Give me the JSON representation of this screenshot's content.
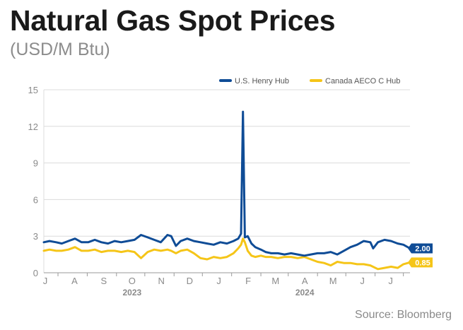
{
  "title": "Natural Gas Spot Prices",
  "subtitle": "(USD/M Btu)",
  "source": "Source: Bloomberg",
  "colors": {
    "henry": "#0f4c96",
    "aeco": "#f5c518",
    "grid": "#dcdcdc",
    "axis": "#9a9a9a"
  },
  "chart_data": {
    "type": "line",
    "y_ticks": [
      0,
      3,
      6,
      9,
      12,
      15
    ],
    "ylim": [
      0,
      15
    ],
    "xlim": [
      "2023-06-16",
      "2024-07-08"
    ],
    "month_ticks": [
      {
        "label": "J",
        "date": "2023-07-01"
      },
      {
        "label": "A",
        "date": "2023-08-01"
      },
      {
        "label": "S",
        "date": "2023-09-01"
      },
      {
        "label": "O",
        "date": "2023-10-01"
      },
      {
        "label": "N",
        "date": "2023-11-01"
      },
      {
        "label": "D",
        "date": "2023-12-01"
      },
      {
        "label": "J",
        "date": "2024-01-01"
      },
      {
        "label": "F",
        "date": "2024-02-01"
      },
      {
        "label": "M",
        "date": "2024-03-01"
      },
      {
        "label": "A",
        "date": "2024-04-01"
      },
      {
        "label": "M",
        "date": "2024-05-01"
      },
      {
        "label": "J",
        "date": "2024-06-01"
      },
      {
        "label": "J",
        "date": "2024-07-01"
      }
    ],
    "year_labels": [
      {
        "label": "2023",
        "date": "2023-10-01"
      },
      {
        "label": "2024",
        "date": "2024-04-01"
      }
    ],
    "legend": "top-right",
    "series": [
      {
        "name": "U.S. Henry Hub",
        "color": "#0f4c96",
        "end_label": "2.00",
        "points": [
          [
            "2023-06-16",
            2.5
          ],
          [
            "2023-06-22",
            2.6
          ],
          [
            "2023-06-29",
            2.5
          ],
          [
            "2023-07-05",
            2.4
          ],
          [
            "2023-07-12",
            2.6
          ],
          [
            "2023-07-19",
            2.8
          ],
          [
            "2023-07-26",
            2.5
          ],
          [
            "2023-08-02",
            2.5
          ],
          [
            "2023-08-09",
            2.7
          ],
          [
            "2023-08-16",
            2.5
          ],
          [
            "2023-08-23",
            2.4
          ],
          [
            "2023-08-30",
            2.6
          ],
          [
            "2023-09-06",
            2.5
          ],
          [
            "2023-09-13",
            2.6
          ],
          [
            "2023-09-20",
            2.7
          ],
          [
            "2023-09-27",
            3.1
          ],
          [
            "2023-10-04",
            2.9
          ],
          [
            "2023-10-11",
            2.7
          ],
          [
            "2023-10-18",
            2.5
          ],
          [
            "2023-10-25",
            3.1
          ],
          [
            "2023-10-29",
            3.0
          ],
          [
            "2023-11-03",
            2.2
          ],
          [
            "2023-11-08",
            2.6
          ],
          [
            "2023-11-15",
            2.8
          ],
          [
            "2023-11-22",
            2.6
          ],
          [
            "2023-11-29",
            2.5
          ],
          [
            "2023-12-06",
            2.4
          ],
          [
            "2023-12-13",
            2.3
          ],
          [
            "2023-12-20",
            2.5
          ],
          [
            "2023-12-27",
            2.4
          ],
          [
            "2024-01-03",
            2.6
          ],
          [
            "2024-01-08",
            2.8
          ],
          [
            "2024-01-11",
            3.2
          ],
          [
            "2024-01-13",
            13.2
          ],
          [
            "2024-01-15",
            2.9
          ],
          [
            "2024-01-18",
            3.0
          ],
          [
            "2024-01-22",
            2.4
          ],
          [
            "2024-01-26",
            2.1
          ],
          [
            "2024-02-01",
            1.9
          ],
          [
            "2024-02-06",
            1.7
          ],
          [
            "2024-02-12",
            1.6
          ],
          [
            "2024-02-19",
            1.6
          ],
          [
            "2024-02-26",
            1.5
          ],
          [
            "2024-03-04",
            1.6
          ],
          [
            "2024-03-11",
            1.5
          ],
          [
            "2024-03-18",
            1.4
          ],
          [
            "2024-03-25",
            1.5
          ],
          [
            "2024-04-01",
            1.6
          ],
          [
            "2024-04-08",
            1.6
          ],
          [
            "2024-04-15",
            1.7
          ],
          [
            "2024-04-22",
            1.5
          ],
          [
            "2024-04-29",
            1.8
          ],
          [
            "2024-05-06",
            2.1
          ],
          [
            "2024-05-13",
            2.3
          ],
          [
            "2024-05-20",
            2.6
          ],
          [
            "2024-05-27",
            2.5
          ],
          [
            "2024-05-30",
            2.0
          ],
          [
            "2024-06-04",
            2.5
          ],
          [
            "2024-06-11",
            2.7
          ],
          [
            "2024-06-18",
            2.6
          ],
          [
            "2024-06-25",
            2.4
          ],
          [
            "2024-07-01",
            2.3
          ],
          [
            "2024-07-08",
            2.0
          ]
        ]
      },
      {
        "name": "Canada AECO C Hub",
        "color": "#f5c518",
        "end_label": "0.85",
        "points": [
          [
            "2023-06-16",
            1.8
          ],
          [
            "2023-06-22",
            1.9
          ],
          [
            "2023-06-29",
            1.8
          ],
          [
            "2023-07-05",
            1.8
          ],
          [
            "2023-07-12",
            1.9
          ],
          [
            "2023-07-19",
            2.1
          ],
          [
            "2023-07-26",
            1.8
          ],
          [
            "2023-08-02",
            1.8
          ],
          [
            "2023-08-09",
            1.9
          ],
          [
            "2023-08-16",
            1.7
          ],
          [
            "2023-08-23",
            1.8
          ],
          [
            "2023-08-30",
            1.8
          ],
          [
            "2023-09-06",
            1.7
          ],
          [
            "2023-09-13",
            1.8
          ],
          [
            "2023-09-20",
            1.7
          ],
          [
            "2023-09-27",
            1.2
          ],
          [
            "2023-10-04",
            1.7
          ],
          [
            "2023-10-11",
            1.9
          ],
          [
            "2023-10-18",
            1.8
          ],
          [
            "2023-10-25",
            1.9
          ],
          [
            "2023-10-29",
            1.8
          ],
          [
            "2023-11-03",
            1.6
          ],
          [
            "2023-11-08",
            1.8
          ],
          [
            "2023-11-15",
            1.9
          ],
          [
            "2023-11-22",
            1.6
          ],
          [
            "2023-11-29",
            1.2
          ],
          [
            "2023-12-06",
            1.1
          ],
          [
            "2023-12-13",
            1.3
          ],
          [
            "2023-12-20",
            1.2
          ],
          [
            "2023-12-27",
            1.3
          ],
          [
            "2024-01-03",
            1.6
          ],
          [
            "2024-01-08",
            2.0
          ],
          [
            "2024-01-11",
            2.3
          ],
          [
            "2024-01-13",
            2.8
          ],
          [
            "2024-01-15",
            2.5
          ],
          [
            "2024-01-18",
            1.8
          ],
          [
            "2024-01-22",
            1.4
          ],
          [
            "2024-01-26",
            1.3
          ],
          [
            "2024-02-01",
            1.4
          ],
          [
            "2024-02-06",
            1.3
          ],
          [
            "2024-02-12",
            1.3
          ],
          [
            "2024-02-19",
            1.2
          ],
          [
            "2024-02-26",
            1.3
          ],
          [
            "2024-03-04",
            1.3
          ],
          [
            "2024-03-11",
            1.2
          ],
          [
            "2024-03-18",
            1.3
          ],
          [
            "2024-03-25",
            1.1
          ],
          [
            "2024-04-01",
            0.9
          ],
          [
            "2024-04-08",
            0.8
          ],
          [
            "2024-04-15",
            0.6
          ],
          [
            "2024-04-22",
            0.9
          ],
          [
            "2024-04-29",
            0.8
          ],
          [
            "2024-05-06",
            0.8
          ],
          [
            "2024-05-13",
            0.7
          ],
          [
            "2024-05-20",
            0.7
          ],
          [
            "2024-05-27",
            0.6
          ],
          [
            "2024-06-04",
            0.3
          ],
          [
            "2024-06-11",
            0.4
          ],
          [
            "2024-06-18",
            0.5
          ],
          [
            "2024-06-25",
            0.4
          ],
          [
            "2024-07-01",
            0.7
          ],
          [
            "2024-07-08",
            0.85
          ]
        ]
      }
    ]
  }
}
